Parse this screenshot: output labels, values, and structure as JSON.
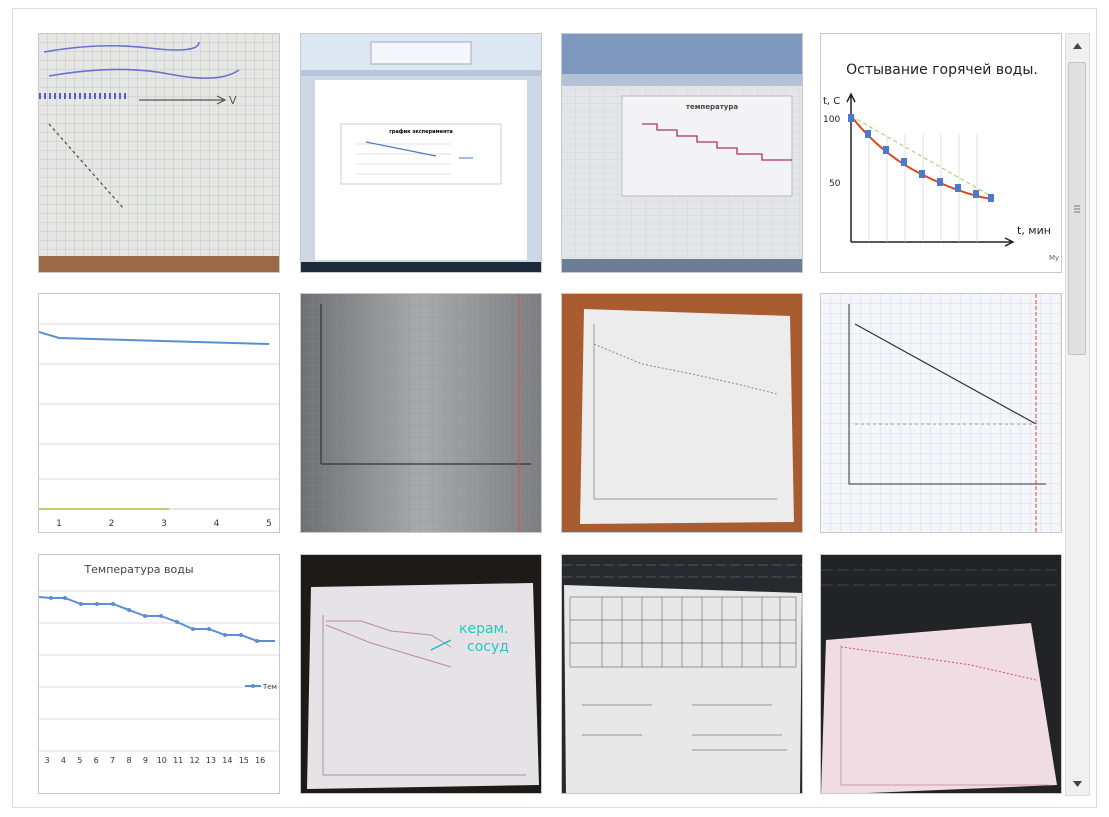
{
  "gallery": {
    "word_chart": {
      "title": "график эксперимента"
    },
    "excel_photo": {
      "title": "температура"
    },
    "cooling_chart": {
      "title": "Остывание горячей воды.",
      "y_label": "t, C",
      "y_ticks": [
        "100",
        "50"
      ],
      "x_label": "t, мин",
      "watermark": "My"
    },
    "line_chart": {
      "x_labels": [
        "1",
        "2",
        "3",
        "4",
        "5"
      ]
    },
    "water_chart": {
      "title": "Температура воды",
      "x_labels": [
        "3",
        "4",
        "5",
        "6",
        "7",
        "8",
        "9",
        "10",
        "11",
        "12",
        "13",
        "14",
        "15",
        "16"
      ],
      "legend": "Тем"
    },
    "ceramic_photo": {
      "note": [
        "керам.",
        "сосуд"
      ]
    }
  }
}
